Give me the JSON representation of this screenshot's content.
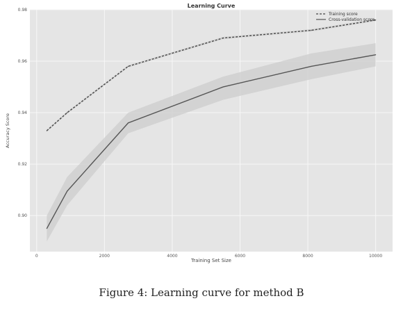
{
  "caption": "Figure 4: Learning curve for method B",
  "chart_data": {
    "type": "line",
    "title": "Learning Curve",
    "xlabel": "Training Set Size",
    "ylabel": "Accuracy Score",
    "xlim": [
      -200,
      10500
    ],
    "ylim": [
      0.886,
      0.98
    ],
    "xticks": [
      0,
      2000,
      4000,
      6000,
      8000,
      10000
    ],
    "yticks": [
      0.9,
      0.92,
      0.94,
      0.96,
      0.98
    ],
    "xtick_labels": [
      "0",
      "2000",
      "4000",
      "6000",
      "8000",
      "10000"
    ],
    "ytick_labels": [
      "0.90",
      "0.92",
      "0.94",
      "0.96",
      "0.98"
    ],
    "grid": true,
    "legend_position": "top-right",
    "background_color": "#e5e5e5",
    "x": [
      300,
      900,
      2700,
      5500,
      8100,
      10000
    ],
    "series": [
      {
        "name": "Training score",
        "style": "dashed",
        "color": "#444444",
        "values": [
          0.933,
          0.94,
          0.958,
          0.969,
          0.972,
          0.976
        ],
        "band_lower": [
          0.9325,
          0.9395,
          0.9575,
          0.9685,
          0.9715,
          0.9755
        ],
        "band_upper": [
          0.9335,
          0.9405,
          0.9585,
          0.9695,
          0.9725,
          0.9765
        ]
      },
      {
        "name": "Cross-validation score",
        "style": "solid",
        "color": "#555555",
        "values": [
          0.895,
          0.9095,
          0.936,
          0.95,
          0.958,
          0.9625
        ],
        "band_lower": [
          0.89,
          0.904,
          0.932,
          0.945,
          0.953,
          0.958
        ],
        "band_upper": [
          0.9,
          0.915,
          0.94,
          0.954,
          0.963,
          0.967
        ]
      }
    ]
  }
}
